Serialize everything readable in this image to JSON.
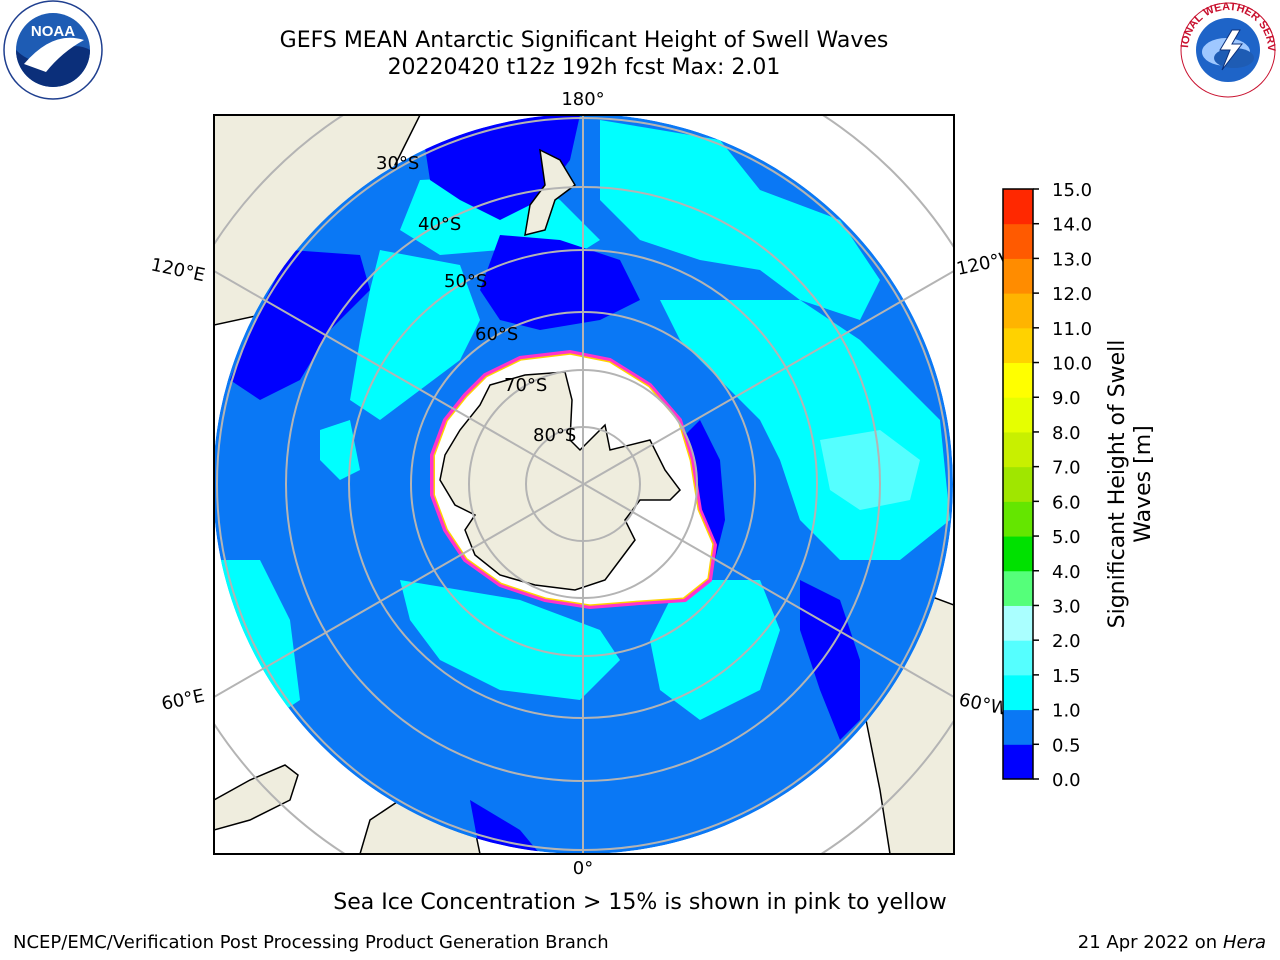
{
  "title": {
    "line1": "GEFS MEAN Antarctic Significant Height of Swell Waves",
    "line2": "20220420 t12z 192h fcst   Max: 2.01"
  },
  "logos": {
    "left": {
      "icon": "noaa-logo",
      "text": "NOAA",
      "ring": "NATIONAL OCEANIC AND ATMOSPHERIC ADMINISTRATION · U.S. DEPARTMENT OF COMMERCE"
    },
    "right": {
      "icon": "nws-logo",
      "ring": "NATIONAL WEATHER SERVICE"
    }
  },
  "map": {
    "projection": "south polar stereographic",
    "longitude_labels": [
      "180°",
      "120°E",
      "120°W",
      "60°E",
      "60°W",
      "0°"
    ],
    "latitude_labels": [
      "30°S",
      "40°S",
      "50°S",
      "60°S",
      "70°S",
      "80°S"
    ],
    "colors": {
      "ocean_low": "#0a78f5",
      "ocean_mid": "#00ffff",
      "ocean_vlow": "#0000ff",
      "ocean_high": "#55ffff",
      "land": "#efedde",
      "ice_edge": "#ff33cc",
      "sea_ice_white": "#ffffff",
      "grid": "#b4b4b4"
    }
  },
  "colorbar": {
    "label_line1": "Significant Height of Swell",
    "label_line2": "Waves [m]",
    "ticks": [
      "0.0",
      "0.5",
      "1.0",
      "1.5",
      "2.0",
      "3.0",
      "4.0",
      "5.0",
      "6.0",
      "7.0",
      "8.0",
      "9.0",
      "10.0",
      "11.0",
      "12.0",
      "13.0",
      "14.0",
      "15.0"
    ],
    "colors": [
      "#0000ff",
      "#0a78f5",
      "#00ffff",
      "#55ffff",
      "#aaffff",
      "#55ff7a",
      "#00e100",
      "#64e600",
      "#a0e600",
      "#c8f000",
      "#e6ff00",
      "#ffff00",
      "#ffd200",
      "#ffb400",
      "#ff8c00",
      "#ff5a00",
      "#ff2800"
    ]
  },
  "caption": "Sea Ice Concentration > 15% is shown in pink to yellow",
  "footer": {
    "left": "NCEP/EMC/Verification Post Processing Product Generation Branch",
    "right_date": "21 Apr 2022 on ",
    "right_host": "Hera"
  }
}
